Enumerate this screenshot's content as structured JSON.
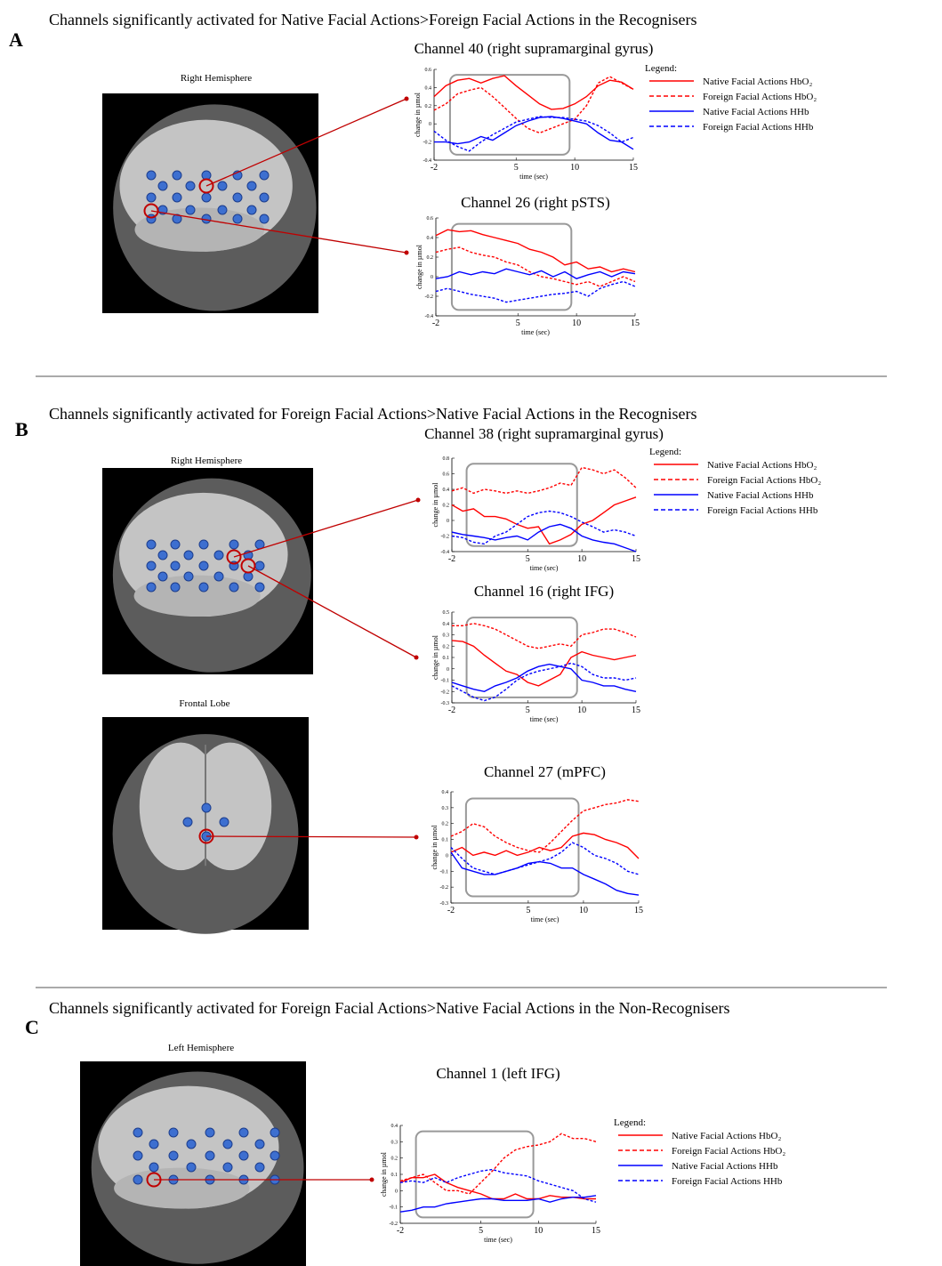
{
  "panels": [
    {
      "label": "A",
      "title": "Channels significantly activated for Native Facial Actions>Foreign Facial Actions in the Recognisers",
      "views": [
        "Right Hemisphere"
      ]
    },
    {
      "label": "B",
      "title": "Channels significantly activated for Foreign Facial Actions>Native Facial Actions in the Recognisers",
      "views": [
        "Right Hemisphere",
        "Frontal Lobe"
      ]
    },
    {
      "label": "C",
      "title": "Channels significantly activated for Foreign Facial Actions>Native Facial Actions in the Non-Recognisers",
      "views": [
        "Left Hemisphere"
      ]
    }
  ],
  "chart_data": [
    {
      "type": "line",
      "title": "Channel 40 (right supramarginal gyrus)",
      "xlabel": "time (sec)",
      "ylabel": "change in µmol",
      "x": [
        -2,
        -1,
        0,
        1,
        2,
        3,
        4,
        5,
        6,
        7,
        8,
        9,
        10,
        11,
        12,
        13,
        14,
        15
      ],
      "xlim": [
        -2,
        15
      ],
      "xticks": [
        -2,
        5,
        10,
        15
      ],
      "ylim": [
        -0.4,
        0.6
      ],
      "yticks": [
        -0.4,
        -0.2,
        0,
        0.2,
        0.4,
        0.6
      ],
      "legend": "right",
      "legend_title": "Legend:",
      "series": [
        {
          "name": "Native Facial Actions HbO₂",
          "color": "#ff0000",
          "style": "solid",
          "values": [
            0.3,
            0.42,
            0.48,
            0.5,
            0.45,
            0.5,
            0.53,
            0.42,
            0.32,
            0.22,
            0.16,
            0.17,
            0.22,
            0.3,
            0.42,
            0.48,
            0.46,
            0.38
          ]
        },
        {
          "name": "Foreign Facial Actions HbO₂",
          "color": "#ff0000",
          "style": "dashed",
          "values": [
            0.15,
            0.22,
            0.33,
            0.37,
            0.4,
            0.3,
            0.18,
            0.06,
            -0.05,
            -0.1,
            -0.05,
            0.0,
            0.05,
            0.2,
            0.45,
            0.52,
            0.45,
            0.38
          ]
        },
        {
          "name": "Native Facial Actions HHb",
          "color": "#0000ff",
          "style": "solid",
          "values": [
            -0.2,
            -0.2,
            -0.22,
            -0.2,
            -0.14,
            -0.18,
            -0.1,
            -0.02,
            0.03,
            0.07,
            0.08,
            0.06,
            0.03,
            0.0,
            -0.1,
            -0.18,
            -0.2,
            -0.28
          ]
        },
        {
          "name": "Foreign Facial Actions HHb",
          "color": "#0000ff",
          "style": "dashed",
          "values": [
            -0.08,
            -0.18,
            -0.25,
            -0.3,
            -0.2,
            -0.12,
            -0.05,
            0.02,
            0.05,
            0.08,
            0.07,
            0.07,
            0.05,
            0.03,
            -0.02,
            -0.1,
            -0.2,
            -0.15
          ]
        }
      ]
    },
    {
      "type": "line",
      "title": "Channel 26 (right pSTS)",
      "xlabel": "time (sec)",
      "ylabel": "change in µmol",
      "x": [
        -2,
        -1,
        0,
        1,
        2,
        3,
        4,
        5,
        6,
        7,
        8,
        9,
        10,
        11,
        12,
        13,
        14,
        15
      ],
      "xlim": [
        -2,
        15
      ],
      "xticks": [
        -2,
        5,
        10,
        15
      ],
      "ylim": [
        -0.4,
        0.6
      ],
      "yticks": [
        -0.4,
        -0.2,
        0,
        0.2,
        0.4,
        0.6
      ],
      "series": [
        {
          "color": "#ff0000",
          "style": "solid",
          "values": [
            0.42,
            0.48,
            0.46,
            0.47,
            0.43,
            0.4,
            0.37,
            0.34,
            0.28,
            0.25,
            0.2,
            0.12,
            0.15,
            0.08,
            0.1,
            0.05,
            0.08,
            0.05
          ]
        },
        {
          "color": "#ff0000",
          "style": "dashed",
          "values": [
            0.25,
            0.28,
            0.3,
            0.25,
            0.22,
            0.2,
            0.15,
            0.12,
            0.05,
            0.0,
            -0.02,
            -0.05,
            -0.08,
            -0.05,
            -0.1,
            -0.05,
            0.0,
            -0.05
          ]
        },
        {
          "color": "#0000ff",
          "style": "solid",
          "values": [
            -0.02,
            0.0,
            0.05,
            0.02,
            0.05,
            0.03,
            0.08,
            0.05,
            0.02,
            0.06,
            0.0,
            0.05,
            -0.02,
            0.02,
            0.05,
            0.0,
            0.05,
            0.03
          ]
        },
        {
          "color": "#0000ff",
          "style": "dashed",
          "values": [
            -0.15,
            -0.12,
            -0.15,
            -0.18,
            -0.2,
            -0.22,
            -0.26,
            -0.24,
            -0.22,
            -0.2,
            -0.18,
            -0.17,
            -0.15,
            -0.2,
            -0.12,
            -0.08,
            -0.05,
            -0.1
          ]
        }
      ]
    },
    {
      "type": "line",
      "title": "Channel 38 (right supramarginal gyrus)",
      "xlabel": "time (sec)",
      "ylabel": "change in µmol",
      "x": [
        -2,
        -1,
        0,
        1,
        2,
        3,
        4,
        5,
        6,
        7,
        8,
        9,
        10,
        11,
        12,
        13,
        14,
        15
      ],
      "xlim": [
        -2,
        15
      ],
      "xticks": [
        -2,
        5,
        10,
        15
      ],
      "ylim": [
        -0.4,
        0.8
      ],
      "yticks": [
        -0.4,
        -0.2,
        0,
        0.2,
        0.4,
        0.6,
        0.8
      ],
      "legend": "right",
      "legend_title": "Legend:",
      "series": [
        {
          "name": "Native Facial Actions HbO₂",
          "color": "#ff0000",
          "style": "solid",
          "values": [
            0.2,
            0.12,
            0.15,
            0.05,
            0.05,
            0.02,
            -0.05,
            -0.1,
            -0.08,
            -0.3,
            -0.25,
            -0.18,
            -0.05,
            0.0,
            0.1,
            0.2,
            0.25,
            0.3
          ]
        },
        {
          "name": "Foreign Facial Actions HbO₂",
          "color": "#ff0000",
          "style": "dashed",
          "values": [
            0.38,
            0.42,
            0.35,
            0.4,
            0.38,
            0.35,
            0.38,
            0.35,
            0.38,
            0.42,
            0.48,
            0.45,
            0.68,
            0.65,
            0.6,
            0.65,
            0.55,
            0.42
          ]
        },
        {
          "name": "Native Facial Actions HHb",
          "color": "#0000ff",
          "style": "solid",
          "values": [
            -0.15,
            -0.18,
            -0.2,
            -0.22,
            -0.25,
            -0.22,
            -0.2,
            -0.25,
            -0.15,
            -0.08,
            -0.05,
            -0.1,
            -0.2,
            -0.25,
            -0.28,
            -0.3,
            -0.35,
            -0.4
          ]
        },
        {
          "name": "Foreign Facial Actions HHb",
          "color": "#0000ff",
          "style": "dashed",
          "values": [
            -0.2,
            -0.22,
            -0.28,
            -0.3,
            -0.2,
            -0.15,
            -0.05,
            0.05,
            0.1,
            0.12,
            0.1,
            0.05,
            -0.02,
            -0.08,
            -0.15,
            -0.12,
            -0.15,
            -0.2
          ]
        }
      ]
    },
    {
      "type": "line",
      "title": "Channel 16 (right IFG)",
      "xlabel": "time (sec)",
      "ylabel": "change in µmol",
      "x": [
        -2,
        -1,
        0,
        1,
        2,
        3,
        4,
        5,
        6,
        7,
        8,
        9,
        10,
        11,
        12,
        13,
        14,
        15
      ],
      "xlim": [
        -2,
        15
      ],
      "xticks": [
        -2,
        5,
        10,
        15
      ],
      "ylim": [
        -0.3,
        0.5
      ],
      "yticks": [
        -0.3,
        -0.2,
        -0.1,
        0,
        0.1,
        0.2,
        0.3,
        0.4,
        0.5
      ],
      "series": [
        {
          "color": "#ff0000",
          "style": "solid",
          "values": [
            0.25,
            0.24,
            0.2,
            0.12,
            0.05,
            -0.02,
            -0.05,
            -0.12,
            -0.15,
            -0.1,
            -0.05,
            0.1,
            0.15,
            0.12,
            0.1,
            0.08,
            0.1,
            0.12
          ]
        },
        {
          "color": "#ff0000",
          "style": "dashed",
          "values": [
            0.38,
            0.38,
            0.4,
            0.38,
            0.35,
            0.3,
            0.25,
            0.2,
            0.18,
            0.2,
            0.22,
            0.2,
            0.3,
            0.32,
            0.35,
            0.35,
            0.32,
            0.28
          ]
        },
        {
          "color": "#0000ff",
          "style": "solid",
          "values": [
            -0.12,
            -0.15,
            -0.18,
            -0.2,
            -0.15,
            -0.12,
            -0.08,
            -0.02,
            0.02,
            0.04,
            0.02,
            0.0,
            -0.1,
            -0.12,
            -0.15,
            -0.15,
            -0.18,
            -0.2
          ]
        },
        {
          "color": "#0000ff",
          "style": "dashed",
          "values": [
            -0.15,
            -0.2,
            -0.25,
            -0.28,
            -0.25,
            -0.18,
            -0.1,
            -0.05,
            -0.02,
            0.0,
            0.02,
            0.05,
            0.02,
            -0.05,
            -0.08,
            -0.08,
            -0.1,
            -0.08
          ]
        }
      ]
    },
    {
      "type": "line",
      "title": "Channel 27 (mPFC)",
      "xlabel": "time (sec)",
      "ylabel": "change in µmol",
      "x": [
        -2,
        -1,
        0,
        1,
        2,
        3,
        4,
        5,
        6,
        7,
        8,
        9,
        10,
        11,
        12,
        13,
        14,
        15
      ],
      "xlim": [
        -2,
        15
      ],
      "xticks": [
        -2,
        5,
        10,
        15
      ],
      "ylim": [
        -0.3,
        0.4
      ],
      "yticks": [
        -0.3,
        -0.2,
        -0.1,
        0,
        0.1,
        0.2,
        0.3,
        0.4
      ],
      "series": [
        {
          "color": "#ff0000",
          "style": "solid",
          "values": [
            0.02,
            0.05,
            0.0,
            0.02,
            0.0,
            0.03,
            0.0,
            0.02,
            0.05,
            0.03,
            0.05,
            0.12,
            0.14,
            0.13,
            0.1,
            0.08,
            0.05,
            -0.02
          ]
        },
        {
          "color": "#ff0000",
          "style": "dashed",
          "values": [
            0.12,
            0.15,
            0.2,
            0.18,
            0.12,
            0.08,
            0.05,
            0.03,
            0.02,
            0.08,
            0.15,
            0.22,
            0.28,
            0.3,
            0.32,
            0.33,
            0.35,
            0.34
          ]
        },
        {
          "color": "#0000ff",
          "style": "solid",
          "values": [
            0.02,
            -0.08,
            -0.1,
            -0.12,
            -0.12,
            -0.1,
            -0.08,
            -0.05,
            -0.04,
            -0.05,
            -0.08,
            -0.08,
            -0.12,
            -0.15,
            -0.18,
            -0.22,
            -0.24,
            -0.25
          ]
        },
        {
          "color": "#0000ff",
          "style": "dashed",
          "values": [
            0.05,
            -0.02,
            -0.08,
            -0.1,
            -0.12,
            -0.1,
            -0.08,
            -0.06,
            -0.04,
            -0.02,
            0.02,
            0.08,
            0.05,
            0.0,
            -0.02,
            -0.05,
            -0.1,
            -0.12
          ]
        }
      ]
    },
    {
      "type": "line",
      "title": "Channel 1 (left IFG)",
      "xlabel": "time (sec)",
      "ylabel": "change in µmol",
      "x": [
        -2,
        -1,
        0,
        1,
        2,
        3,
        4,
        5,
        6,
        7,
        8,
        9,
        10,
        11,
        12,
        13,
        14,
        15
      ],
      "xlim": [
        -2,
        15
      ],
      "xticks": [
        -2,
        5,
        10,
        15
      ],
      "ylim": [
        -0.2,
        0.4
      ],
      "yticks": [
        -0.2,
        -0.1,
        0,
        0.1,
        0.2,
        0.3,
        0.4
      ],
      "legend": "right",
      "legend_title": "Legend:",
      "series": [
        {
          "name": "Native Facial Actions HbO₂",
          "color": "#ff0000",
          "style": "solid",
          "values": [
            0.05,
            0.08,
            0.08,
            0.1,
            0.05,
            0.02,
            0.0,
            -0.02,
            -0.05,
            -0.05,
            -0.02,
            -0.05,
            -0.05,
            -0.03,
            -0.04,
            -0.04,
            -0.05,
            -0.05
          ]
        },
        {
          "name": "Foreign Facial Actions HbO₂",
          "color": "#ff0000",
          "style": "dashed",
          "values": [
            0.06,
            0.08,
            0.1,
            0.05,
            0.0,
            0.0,
            -0.02,
            0.05,
            0.12,
            0.2,
            0.25,
            0.27,
            0.28,
            0.3,
            0.35,
            0.32,
            0.32,
            0.3
          ]
        },
        {
          "name": "Native Facial Actions HHb",
          "color": "#0000ff",
          "style": "solid",
          "values": [
            -0.13,
            -0.12,
            -0.1,
            -0.1,
            -0.08,
            -0.07,
            -0.06,
            -0.05,
            -0.05,
            -0.06,
            -0.06,
            -0.06,
            -0.05,
            -0.07,
            -0.05,
            -0.04,
            -0.04,
            -0.03
          ]
        },
        {
          "name": "Foreign Facial Actions HHb",
          "color": "#0000ff",
          "style": "dashed",
          "values": [
            0.05,
            0.06,
            0.05,
            0.08,
            0.05,
            0.08,
            0.1,
            0.12,
            0.13,
            0.11,
            0.1,
            0.09,
            0.06,
            0.04,
            0.02,
            0.0,
            -0.05,
            -0.07
          ]
        }
      ]
    }
  ]
}
